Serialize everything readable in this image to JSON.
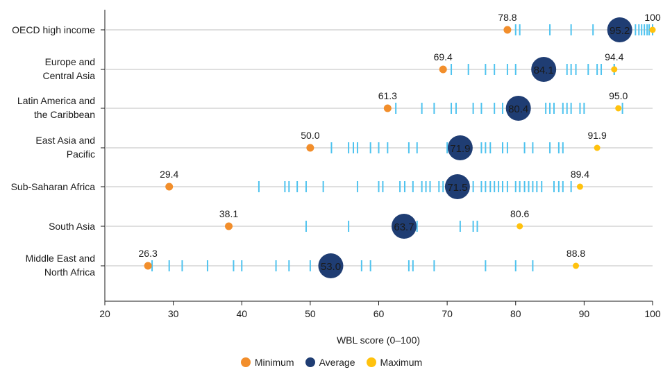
{
  "chart_data": {
    "type": "scatter",
    "xlabel": "WBL score (0–100)",
    "xlim": [
      20,
      100
    ],
    "x_ticks": [
      20,
      30,
      40,
      50,
      60,
      70,
      80,
      90,
      100
    ],
    "colors": {
      "minimum": "#f28e2b",
      "average": "#1f3d73",
      "maximum": "#ffc20e",
      "economy": "#4ec3ef",
      "grid": "#bfbfbf",
      "axis": "#1a1a1a"
    },
    "legend": [
      {
        "key": "minimum",
        "label": "Minimum"
      },
      {
        "key": "average",
        "label": "Average"
      },
      {
        "key": "maximum",
        "label": "Maximum"
      }
    ],
    "regions": [
      {
        "name": [
          "OECD high income"
        ],
        "min": 78.8,
        "avg": 95.2,
        "max": 100,
        "min_label": "78.8",
        "avg_label": "95.2",
        "max_label": "100",
        "economies": [
          80.0,
          80.6,
          85.0,
          88.1,
          91.3,
          96.0,
          97.5,
          98.0,
          98.4,
          98.8,
          99.2,
          99.5,
          100,
          100
        ]
      },
      {
        "name": [
          "Europe and",
          "Central Asia"
        ],
        "min": 69.4,
        "avg": 84.1,
        "max": 94.4,
        "min_label": "69.4",
        "avg_label": "84.1",
        "max_label": "94.4",
        "economies": [
          70.6,
          73.1,
          75.6,
          76.9,
          78.8,
          80.0,
          82.5,
          87.5,
          88.1,
          88.8,
          90.6,
          91.9,
          92.5,
          94.4,
          94.4
        ]
      },
      {
        "name": [
          "Latin America and",
          "the Caribbean"
        ],
        "min": 61.3,
        "avg": 80.4,
        "max": 95.0,
        "min_label": "61.3",
        "avg_label": "80.4",
        "max_label": "95.0",
        "economies": [
          62.5,
          66.3,
          68.1,
          70.6,
          71.3,
          73.8,
          75.0,
          76.9,
          78.1,
          84.4,
          85.0,
          85.6,
          86.9,
          87.5,
          88.1,
          89.4,
          90.0,
          95.6
        ]
      },
      {
        "name": [
          "East Asia and",
          "Pacific"
        ],
        "min": 50.0,
        "avg": 71.9,
        "max": 91.9,
        "min_label": "50.0",
        "avg_label": "71.9",
        "max_label": "91.9",
        "economies": [
          53.1,
          55.6,
          56.3,
          56.9,
          58.8,
          60.0,
          61.3,
          64.4,
          65.6,
          70.0,
          75.0,
          75.6,
          76.3,
          78.1,
          78.8,
          81.3,
          82.5,
          85.0,
          86.3,
          86.9
        ]
      },
      {
        "name": [
          "Sub-Saharan Africa"
        ],
        "min": 29.4,
        "avg": 71.5,
        "max": 89.4,
        "min_label": "29.4",
        "avg_label": "71.5",
        "max_label": "89.4",
        "economies": [
          42.5,
          46.3,
          46.9,
          48.1,
          49.4,
          51.9,
          56.9,
          60.0,
          60.6,
          63.1,
          63.8,
          65.0,
          66.3,
          66.9,
          67.5,
          68.8,
          69.4,
          70.6,
          72.5,
          73.1,
          73.8,
          75.0,
          75.6,
          76.3,
          76.9,
          77.5,
          78.1,
          78.8,
          80.0,
          80.6,
          81.3,
          81.9,
          82.5,
          83.1,
          83.8,
          85.6,
          86.3,
          86.9,
          88.1
        ]
      },
      {
        "name": [
          "South Asia"
        ],
        "min": 38.1,
        "avg": 63.7,
        "max": 80.6,
        "min_label": "38.1",
        "avg_label": "63.7",
        "max_label": "80.6",
        "economies": [
          49.4,
          55.6,
          65.6,
          71.9,
          73.8,
          74.4
        ]
      },
      {
        "name": [
          "Middle East and",
          "North Africa"
        ],
        "min": 26.3,
        "avg": 53.0,
        "max": 88.8,
        "min_label": "26.3",
        "avg_label": "53.0",
        "max_label": "88.8",
        "economies": [
          26.9,
          29.4,
          31.3,
          35.0,
          38.8,
          40.0,
          45.0,
          46.9,
          50.0,
          57.5,
          58.8,
          64.4,
          65.0,
          68.1,
          75.6,
          80.0,
          82.5
        ]
      }
    ]
  }
}
